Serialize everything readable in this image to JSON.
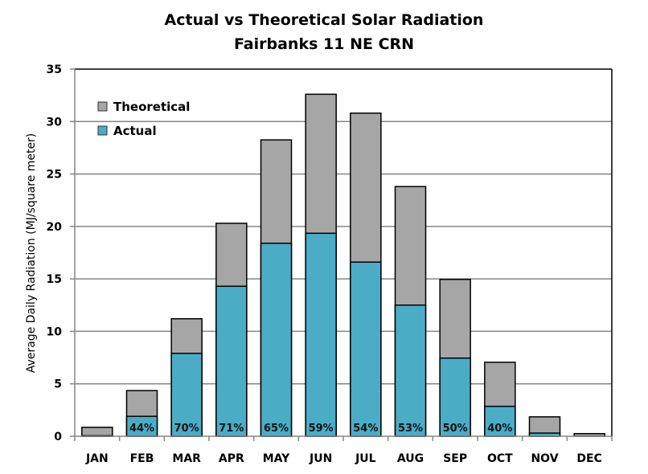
{
  "chart_data": {
    "type": "bar",
    "stacked": true,
    "title": "Actual vs Theoretical Solar Radiation",
    "subtitle": "Fairbanks 11 NE CRN",
    "xlabel": "",
    "ylabel": "Average Daily Radiation (MJ/square meter)",
    "ylim": [
      0,
      35
    ],
    "yticks": [
      0,
      5,
      10,
      15,
      20,
      25,
      30,
      35
    ],
    "grid": true,
    "legend_position": "top-left",
    "categories": [
      "JAN",
      "FEB",
      "MAR",
      "APR",
      "MAY",
      "JUN",
      "JUL",
      "AUG",
      "SEP",
      "OCT",
      "NOV",
      "DEC"
    ],
    "series": [
      {
        "name": "Actual",
        "color": "#4BACC6",
        "values": [
          0.05,
          1.9,
          7.9,
          14.3,
          18.4,
          19.35,
          16.6,
          12.5,
          7.45,
          2.85,
          0.3,
          0.0
        ]
      },
      {
        "name": "Theoretical",
        "color": "#A6A6A6",
        "totals": [
          0.85,
          4.35,
          11.2,
          20.3,
          28.25,
          32.6,
          30.8,
          23.8,
          14.95,
          7.05,
          1.85,
          0.25
        ]
      }
    ],
    "legend": [
      {
        "name": "Theoretical",
        "color": "#A6A6A6"
      },
      {
        "name": "Actual",
        "color": "#4BACC6"
      }
    ],
    "percent_labels": [
      "",
      "44%",
      "70%",
      "71%",
      "65%",
      "59%",
      "54%",
      "53%",
      "50%",
      "40%",
      "",
      ""
    ]
  }
}
